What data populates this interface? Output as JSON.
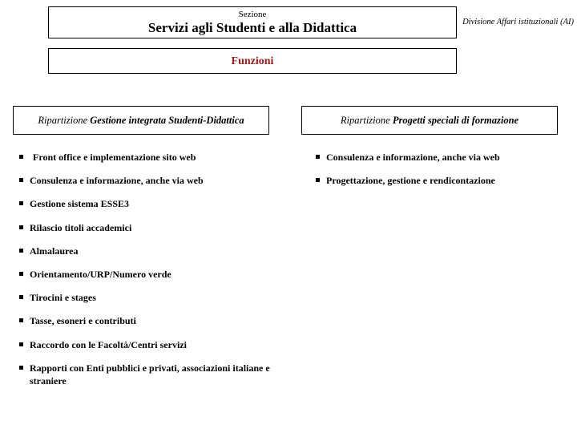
{
  "header": {
    "label": "Sezione",
    "title": "Servizi agli Studenti e alla Didattica"
  },
  "corner": "Divisione Affari istituzionali (AI)",
  "funzioni": "Funzioni",
  "left_box": {
    "prefix": "Ripartizione ",
    "bold": "Gestione integrata Studenti-Didattica"
  },
  "right_box": {
    "prefix": "Ripartizione ",
    "bold": "Progetti speciali di formazione"
  },
  "left_list": [
    "Front office e implementazione sito web",
    "Consulenza e informazione, anche via web",
    "Gestione sistema ESSE3",
    "Rilascio titoli accademici",
    "Almalaurea",
    "Orientamento/URP/Numero verde",
    "Tirocini e stages",
    "Tasse, esoneri e contributi",
    "Raccordo con le Facoltà/Centri servizi",
    "Rapporti con Enti pubblici e privati, associazioni italiane e straniere"
  ],
  "right_list": [
    "Consulenza e informazione, anche via web",
    "Progettazione, gestione e rendicontazione"
  ],
  "colors": {
    "accent": "#9a1a1a",
    "border": "#000000",
    "background": "#ffffff"
  }
}
